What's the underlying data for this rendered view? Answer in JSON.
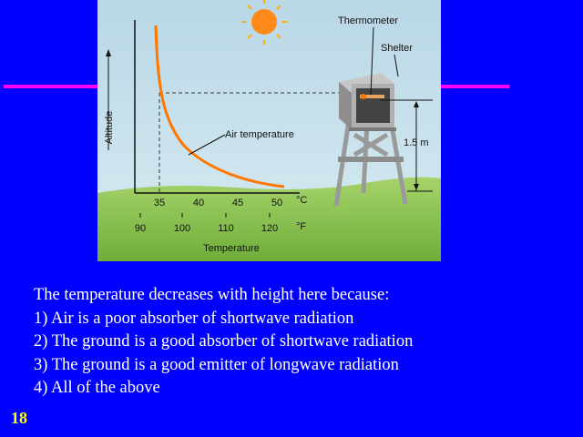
{
  "figure": {
    "thermometer_label": "Thermometer",
    "shelter_label": "Shelter",
    "curve_label": "Air temperature",
    "height_label": "1.5 m",
    "y_axis_label": "Altitude",
    "x_axis_label": "Temperature",
    "celsius_ticks": [
      "35",
      "40",
      "45",
      "50"
    ],
    "celsius_unit": "°C",
    "fahrenheit_ticks": [
      "90",
      "100",
      "110",
      "120"
    ],
    "fahrenheit_unit": "°F",
    "colors": {
      "sky": "#bcdce8",
      "ground": "#8cc24e",
      "curve": "#ff7700",
      "sun": "#ff8a1a",
      "shelter": "#8a8a8a"
    }
  },
  "question": {
    "prompt": "The temperature decreases with height here because:",
    "options": [
      "1) Air is a poor absorber of shortwave radiation",
      "2) The ground is a good absorber of shortwave radiation",
      "3) The ground is a good emitter of longwave radiation",
      "4) All of the above"
    ]
  },
  "slide_number": "18",
  "colors": {
    "background": "#0000ff",
    "accent_line": "#ff00ff",
    "slide_number": "#ffff00"
  }
}
